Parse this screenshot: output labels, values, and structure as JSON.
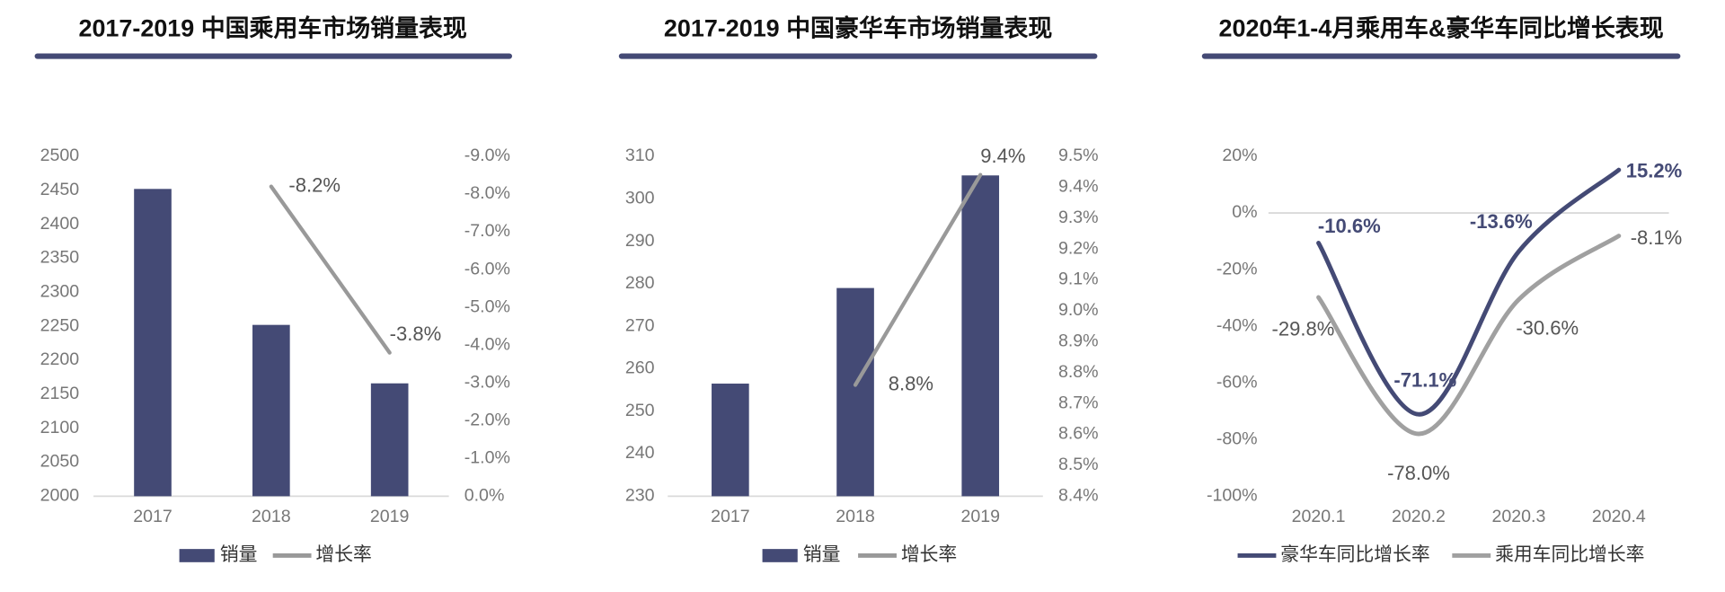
{
  "chart_data": [
    {
      "type": "bar",
      "title": "2017-2019 中国乘用车市场销量表现",
      "categories": [
        "2017",
        "2018",
        "2019"
      ],
      "series": [
        {
          "name": "销量",
          "type": "bar",
          "color": "#444a75",
          "values": [
            2452,
            2252,
            2166
          ]
        },
        {
          "name": "增长率",
          "type": "line",
          "axis": "y2",
          "color": "#999999",
          "values": [
            null,
            -8.2,
            -3.8
          ],
          "value_labels": [
            null,
            "-8.2%",
            "-3.8%"
          ]
        }
      ],
      "ylim": [
        2000,
        2500
      ],
      "yticks": [
        2000,
        2050,
        2100,
        2150,
        2200,
        2250,
        2300,
        2350,
        2400,
        2450,
        2500
      ],
      "y2lim": [
        0,
        -9
      ],
      "y2ticks": [
        {
          "value": 0,
          "label": "0.0%"
        },
        {
          "value": -1,
          "label": "-1.0%"
        },
        {
          "value": -2,
          "label": "-2.0%"
        },
        {
          "value": -3,
          "label": "-3.0%"
        },
        {
          "value": -4,
          "label": "-4.0%"
        },
        {
          "value": -5,
          "label": "-5.0%"
        },
        {
          "value": -6,
          "label": "-6.0%"
        },
        {
          "value": -7,
          "label": "-7.0%"
        },
        {
          "value": -8,
          "label": "-8.0%"
        },
        {
          "value": -9,
          "label": "-9.0%"
        }
      ],
      "legend": "bottom"
    },
    {
      "type": "bar",
      "title": "2017-2019 中国豪华车市场销量表现",
      "categories": [
        "2017",
        "2018",
        "2019"
      ],
      "series": [
        {
          "name": "销量",
          "type": "bar",
          "color": "#444a75",
          "values": [
            256.5,
            279,
            305.5
          ]
        },
        {
          "name": "增长率",
          "type": "line",
          "axis": "y2",
          "color": "#999999",
          "values": [
            null,
            8.76,
            9.44
          ],
          "value_labels": [
            null,
            "8.8%",
            "9.4%"
          ]
        }
      ],
      "ylim": [
        230,
        310
      ],
      "yticks": [
        230,
        240,
        250,
        260,
        270,
        280,
        290,
        300,
        310
      ],
      "y2lim": [
        8.4,
        9.5
      ],
      "y2ticks": [
        {
          "value": 8.4,
          "label": "8.4%"
        },
        {
          "value": 8.5,
          "label": "8.5%"
        },
        {
          "value": 8.6,
          "label": "8.6%"
        },
        {
          "value": 8.7,
          "label": "8.7%"
        },
        {
          "value": 8.8,
          "label": "8.8%"
        },
        {
          "value": 8.9,
          "label": "8.9%"
        },
        {
          "value": 9.0,
          "label": "9.0%"
        },
        {
          "value": 9.1,
          "label": "9.1%"
        },
        {
          "value": 9.2,
          "label": "9.2%"
        },
        {
          "value": 9.3,
          "label": "9.3%"
        },
        {
          "value": 9.4,
          "label": "9.4%"
        },
        {
          "value": 9.5,
          "label": "9.5%"
        }
      ],
      "legend": "bottom"
    },
    {
      "type": "line",
      "title": "2020年1-4月乘用车&豪华车同比增长表现",
      "smooth": true,
      "categories": [
        "2020.1",
        "2020.2",
        "2020.3",
        "2020.4"
      ],
      "series": [
        {
          "name": "豪华车同比增长率",
          "color": "#444a75",
          "values": [
            -10.6,
            -71.1,
            -13.6,
            15.2
          ],
          "value_labels": [
            "-10.6%",
            "-71.1%",
            "-13.6%",
            "15.2%"
          ]
        },
        {
          "name": "乘用车同比增长率",
          "color": "#a0a0a0",
          "values": [
            -29.8,
            -78.0,
            -30.6,
            -8.1
          ],
          "value_labels": [
            "-29.8%",
            "-78.0%",
            "-30.6%",
            "-8.1%"
          ]
        }
      ],
      "ylim": [
        -100,
        20
      ],
      "yticks": [
        {
          "value": -100,
          "label": "-100%"
        },
        {
          "value": -80,
          "label": "-80%"
        },
        {
          "value": -60,
          "label": "-60%"
        },
        {
          "value": -40,
          "label": "-40%"
        },
        {
          "value": -20,
          "label": "-20%"
        },
        {
          "value": 0,
          "label": "0%"
        },
        {
          "value": 20,
          "label": "20%"
        }
      ],
      "legend": "bottom"
    }
  ]
}
